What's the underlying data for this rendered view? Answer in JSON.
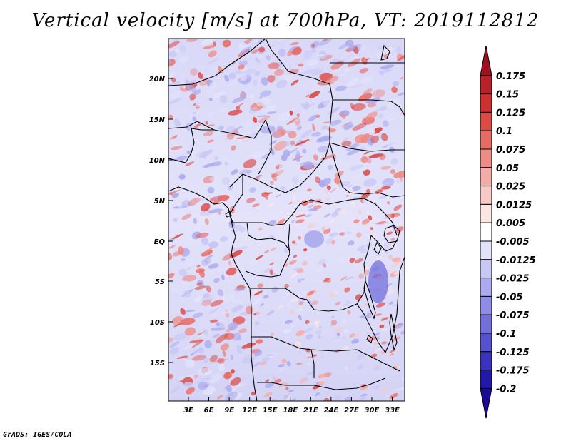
{
  "title": "Vertical velocity [m/s] at 700hPa, VT: 2019112812",
  "credit": "GrADS: IGES/COLA",
  "map": {
    "lat_labels": [
      "20N",
      "15N",
      "10N",
      "5N",
      "EQ",
      "5S",
      "10S",
      "15S"
    ],
    "lon_labels": [
      "3E",
      "6E",
      "9E",
      "12E",
      "15E",
      "18E",
      "21E",
      "24E",
      "27E",
      "30E",
      "33E"
    ]
  },
  "colorbar": {
    "labels": [
      "0.175",
      "0.15",
      "0.125",
      "0.1",
      "0.075",
      "0.05",
      "0.025",
      "0.0125",
      "0.005",
      "-0.005",
      "-0.0125",
      "-0.025",
      "-0.05",
      "-0.075",
      "-0.1",
      "-0.125",
      "-0.175",
      "-0.2"
    ],
    "colors": [
      "#a01020",
      "#b8202a",
      "#cc3030",
      "#dd4a46",
      "#e86a64",
      "#ee8c86",
      "#f4aca8",
      "#f8cac6",
      "#fce6e4",
      "#ffffff",
      "#e2e2fb",
      "#c8c8f5",
      "#abaaee",
      "#8e8ce6",
      "#726fdc",
      "#5651cf",
      "#3a33c0",
      "#2218ac",
      "#1a0a96"
    ]
  },
  "colors": {
    "frame": "#000000",
    "background": "#ffffff"
  }
}
